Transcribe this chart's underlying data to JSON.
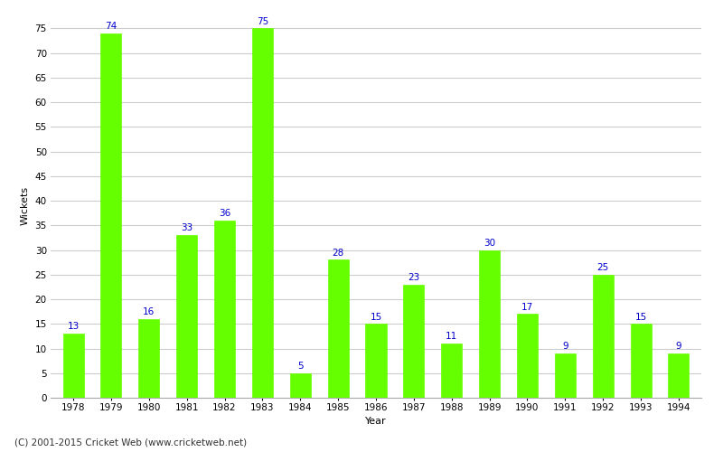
{
  "years": [
    1978,
    1979,
    1980,
    1981,
    1982,
    1983,
    1984,
    1985,
    1986,
    1987,
    1988,
    1989,
    1990,
    1991,
    1992,
    1993,
    1994
  ],
  "wickets": [
    13,
    74,
    16,
    33,
    36,
    75,
    5,
    28,
    15,
    23,
    11,
    30,
    17,
    9,
    25,
    15,
    9
  ],
  "bar_color": "#66ff00",
  "label_color": "#0000cc",
  "title": "",
  "xlabel": "Year",
  "ylabel": "Wickets",
  "ylim": [
    0,
    78
  ],
  "yticks": [
    0,
    5,
    10,
    15,
    20,
    25,
    30,
    35,
    40,
    45,
    50,
    55,
    60,
    65,
    70,
    75
  ],
  "background_color": "#ffffff",
  "grid_color": "#cccccc",
  "footer": "(C) 2001-2015 Cricket Web (www.cricketweb.net)",
  "label_fontsize": 7.5,
  "axis_label_fontsize": 8,
  "tick_fontsize": 7.5,
  "footer_fontsize": 7.5,
  "bar_width": 0.55
}
